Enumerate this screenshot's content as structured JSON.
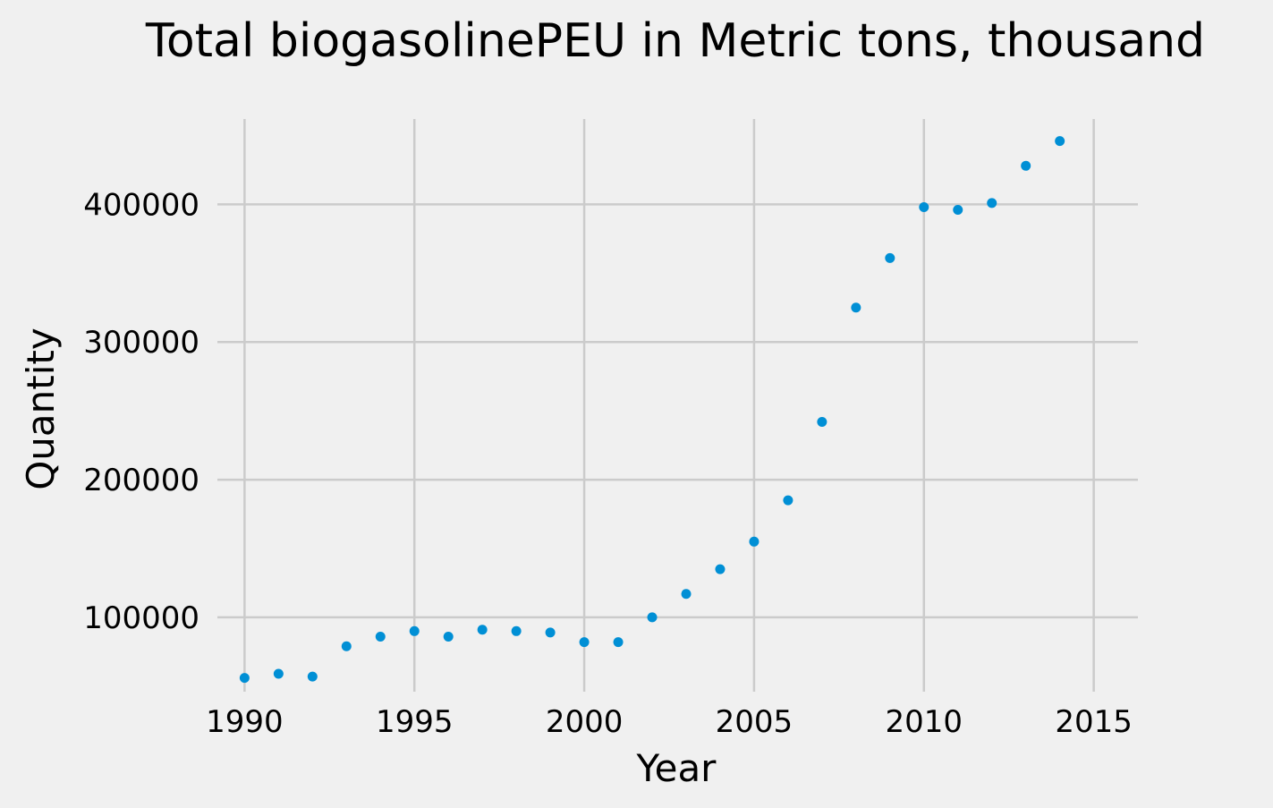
{
  "chart_data": {
    "type": "scatter",
    "title": "Total biogasolinePEU in Metric tons,  thousand",
    "xlabel": "Year",
    "ylabel": "Quantity",
    "xlim": [
      1989.2,
      2016.3
    ],
    "ylim": [
      46000,
      462000
    ],
    "x_ticks": [
      1990,
      1995,
      2000,
      2005,
      2010,
      2015
    ],
    "y_ticks": [
      100000,
      200000,
      300000,
      400000
    ],
    "grid": true,
    "marker_color": "#008fd5",
    "background": "#f0f0f0",
    "series": [
      {
        "x": [
          1990,
          1991,
          1992,
          1993,
          1994,
          1995,
          1996,
          1997,
          1998,
          1999,
          2000,
          2001,
          2002,
          2003,
          2004,
          2005,
          2006,
          2007,
          2008,
          2009,
          2010,
          2011,
          2012,
          2013,
          2014
        ],
        "y": [
          56000,
          59000,
          57000,
          79000,
          86000,
          90000,
          86000,
          91000,
          90000,
          89000,
          82000,
          82000,
          100000,
          117000,
          135000,
          155000,
          185000,
          242000,
          325000,
          361000,
          398000,
          396000,
          401000,
          428000,
          446000
        ]
      }
    ]
  }
}
